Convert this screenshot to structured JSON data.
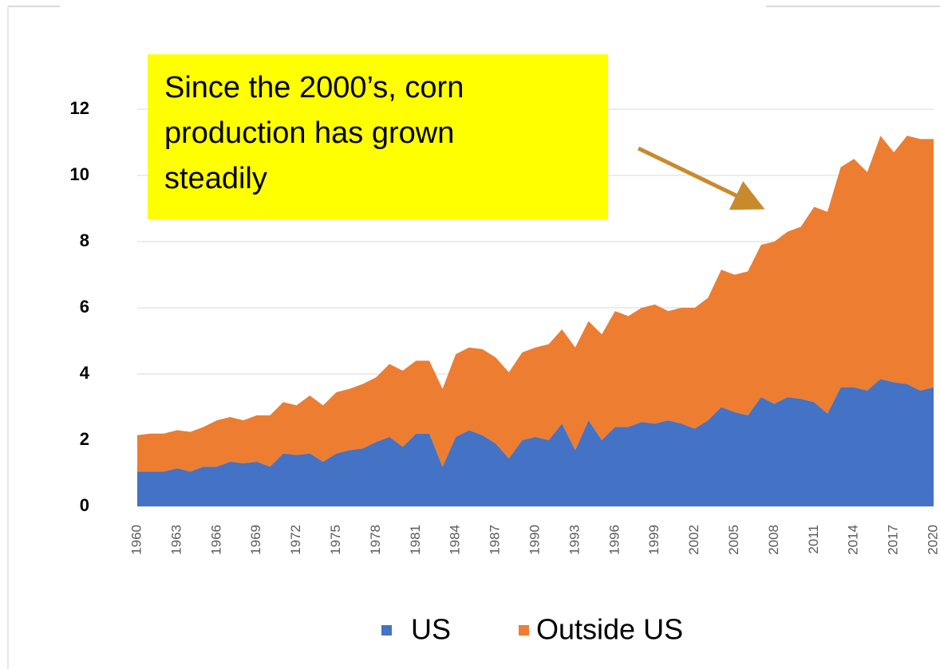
{
  "chart_data": {
    "type": "stacked-area",
    "x": [
      1960,
      1961,
      1962,
      1963,
      1964,
      1965,
      1966,
      1967,
      1968,
      1969,
      1970,
      1971,
      1972,
      1973,
      1974,
      1975,
      1976,
      1977,
      1978,
      1979,
      1980,
      1981,
      1982,
      1983,
      1984,
      1985,
      1986,
      1987,
      1988,
      1989,
      1990,
      1991,
      1992,
      1993,
      1994,
      1995,
      1996,
      1997,
      1998,
      1999,
      2000,
      2001,
      2002,
      2003,
      2004,
      2005,
      2006,
      2007,
      2008,
      2009,
      2010,
      2011,
      2012,
      2013,
      2014,
      2015,
      2016,
      2017,
      2018,
      2019,
      2020
    ],
    "series": [
      {
        "name": "US",
        "color": "#4472c4",
        "values": [
          1.05,
          1.05,
          1.05,
          1.15,
          1.05,
          1.2,
          1.2,
          1.35,
          1.3,
          1.35,
          1.2,
          1.6,
          1.55,
          1.6,
          1.35,
          1.6,
          1.7,
          1.75,
          1.95,
          2.1,
          1.8,
          2.2,
          2.2,
          1.2,
          2.1,
          2.3,
          2.15,
          1.9,
          1.45,
          2.0,
          2.1,
          2.0,
          2.5,
          1.7,
          2.6,
          2.0,
          2.4,
          2.4,
          2.55,
          2.5,
          2.6,
          2.5,
          2.35,
          2.6,
          3.0,
          2.85,
          2.75,
          3.3,
          3.1,
          3.3,
          3.25,
          3.15,
          2.8,
          3.6,
          3.6,
          3.5,
          3.85,
          3.75,
          3.7,
          3.5,
          3.6
        ]
      },
      {
        "name": "Outside US",
        "color": "#ed7d31",
        "values": [
          1.1,
          1.15,
          1.15,
          1.15,
          1.2,
          1.2,
          1.4,
          1.35,
          1.3,
          1.4,
          1.55,
          1.55,
          1.5,
          1.75,
          1.7,
          1.85,
          1.85,
          1.95,
          1.95,
          2.2,
          2.3,
          2.2,
          2.2,
          2.35,
          2.5,
          2.5,
          2.6,
          2.6,
          2.6,
          2.65,
          2.7,
          2.9,
          2.85,
          3.1,
          3.0,
          3.2,
          3.5,
          3.35,
          3.45,
          3.6,
          3.3,
          3.5,
          3.65,
          3.7,
          4.15,
          4.15,
          4.35,
          4.6,
          4.9,
          5.0,
          5.2,
          5.9,
          6.1,
          6.65,
          6.9,
          6.6,
          7.35,
          6.95,
          7.5,
          7.6,
          7.5
        ]
      }
    ],
    "xlim": [
      1960,
      2020
    ],
    "xticks": [
      1960,
      1963,
      1966,
      1969,
      1972,
      1975,
      1978,
      1981,
      1984,
      1987,
      1990,
      1993,
      1996,
      1999,
      2002,
      2005,
      2008,
      2011,
      2014,
      2017,
      2020
    ],
    "ylim": [
      0,
      12
    ],
    "yticks": [
      0,
      2,
      4,
      6,
      8,
      10,
      12
    ],
    "grid": true,
    "legend": "bottom",
    "annotation": [
      "Since the 2000’s, corn",
      "production has grown",
      "steadily"
    ]
  }
}
